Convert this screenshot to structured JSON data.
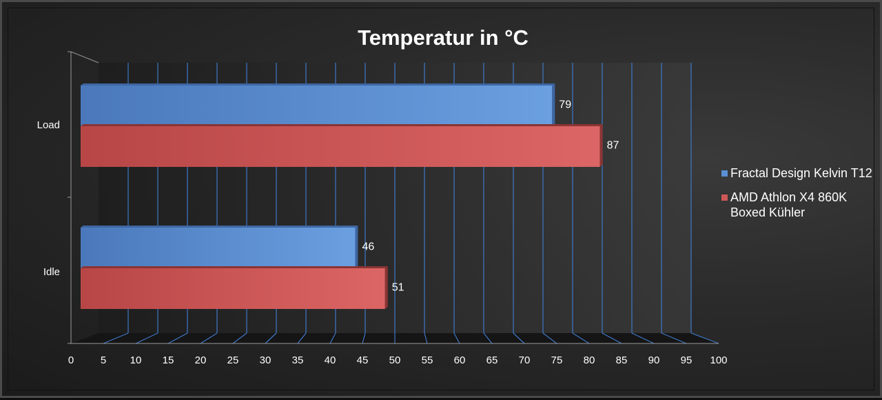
{
  "chart_data": {
    "type": "bar",
    "orientation": "horizontal",
    "style": "3d",
    "title": "Temperatur in °C",
    "categories": [
      "Load",
      "Idle"
    ],
    "series": [
      {
        "name": "Fractal Design Kelvin T12",
        "values": [
          79,
          46
        ],
        "color": "#5b8fd4"
      },
      {
        "name": "AMD Athlon X4 860K Boxed Kühler",
        "values": [
          87,
          51
        ],
        "color": "#cf5757"
      }
    ],
    "xlim": [
      0,
      100
    ],
    "xticks": [
      0,
      5,
      10,
      15,
      20,
      25,
      30,
      35,
      40,
      45,
      50,
      55,
      60,
      65,
      70,
      75,
      80,
      85,
      90,
      95,
      100
    ],
    "grid": true,
    "legend_position": "right",
    "data_labels": true
  },
  "colors": {
    "background": "#2a2a2a",
    "gridline": "#3f78c8",
    "axis": "#9a9a9a",
    "text": "#ffffff"
  }
}
